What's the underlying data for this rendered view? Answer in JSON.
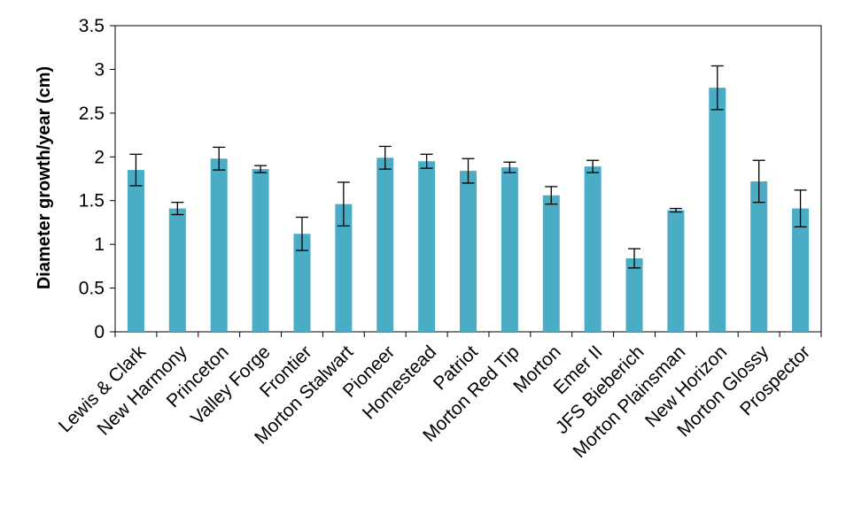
{
  "chart_data": {
    "type": "bar",
    "title": "",
    "xlabel": "",
    "ylabel": "Diameter growth/year (cm)",
    "ylim": [
      0,
      3.5
    ],
    "yticks": [
      "0",
      "0.5",
      "1",
      "1.5",
      "2",
      "2.5",
      "3",
      "3.5"
    ],
    "grid": false,
    "legend": "none",
    "bar_color": "#4BACC6",
    "categories": [
      "Lewis & Clark",
      "New Harmony",
      "Princeton",
      "Valley Forge",
      "Frontier",
      "Morton Stalwart",
      "Pioneer",
      "Homestead",
      "Patriot",
      "Morton Red Tip",
      "Morton",
      "Emer II",
      "JFS Bieberich",
      "Morton Plainsman",
      "New Horizon",
      "Morton Glossy",
      "Prospector"
    ],
    "values": [
      1.85,
      1.41,
      1.98,
      1.86,
      1.12,
      1.46,
      1.99,
      1.95,
      1.84,
      1.88,
      1.56,
      1.89,
      0.84,
      1.39,
      2.79,
      1.72,
      1.41
    ],
    "errors": [
      0.18,
      0.07,
      0.13,
      0.04,
      0.19,
      0.25,
      0.13,
      0.08,
      0.14,
      0.06,
      0.1,
      0.07,
      0.11,
      0.02,
      0.25,
      0.24,
      0.21
    ]
  }
}
